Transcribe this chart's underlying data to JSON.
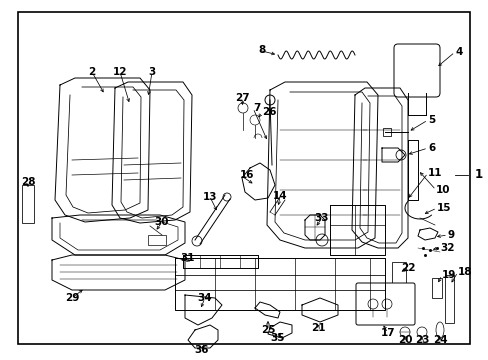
{
  "background_color": "#ffffff",
  "border_color": "#000000",
  "border_linewidth": 1.2,
  "fig_width": 4.89,
  "fig_height": 3.6,
  "dpi": 100,
  "label_fontsize": 7.5,
  "label_color": "#000000",
  "line_color": "#000000",
  "lw": 0.7
}
